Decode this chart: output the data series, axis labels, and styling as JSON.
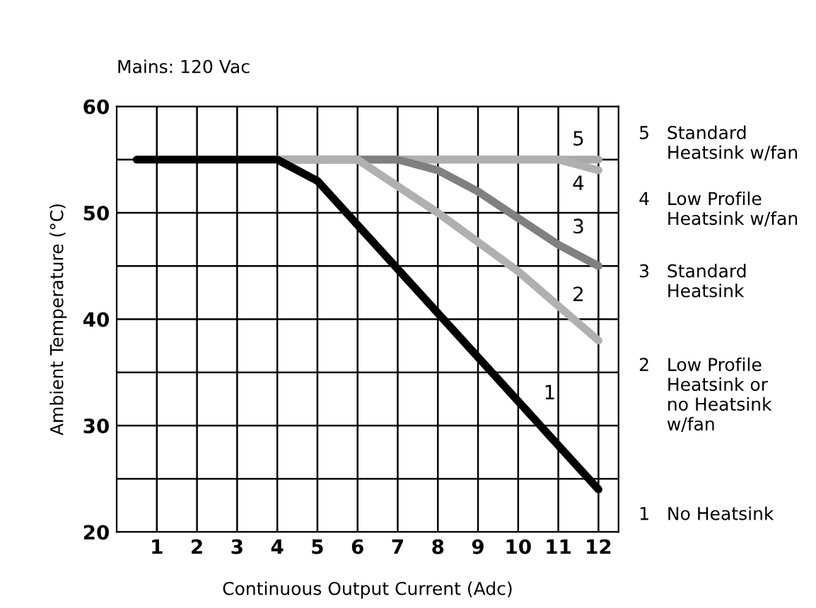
{
  "chart_data": {
    "type": "line",
    "subtitle": "Mains: 120 Vac",
    "xlabel": "Continuous Output Current (Adc)",
    "ylabel": "Ambient Temperature (°C)",
    "xlim": [
      0,
      12.5
    ],
    "xticks": [
      1,
      2,
      3,
      4,
      5,
      6,
      7,
      8,
      9,
      10,
      11,
      12
    ],
    "ylim": [
      20,
      60
    ],
    "yticks": [
      20,
      {
        "value": 25,
        "label": null
      },
      30,
      {
        "value": 35,
        "label": null
      },
      40,
      {
        "value": 45,
        "label": null
      },
      50,
      {
        "value": 55,
        "label": null
      },
      60
    ],
    "grid": true,
    "line_style": "solid",
    "marker": "none",
    "series": [
      {
        "color": "#aaaaaa",
        "x": [
          4,
          12
        ],
        "values": [
          55,
          55
        ]
      },
      {
        "color": "#b0b0b0",
        "x": [
          4,
          11,
          12
        ],
        "values": [
          55,
          55,
          54
        ]
      },
      {
        "color": "#808080",
        "x": [
          4,
          7,
          8,
          9,
          10,
          11,
          12
        ],
        "values": [
          55,
          55,
          54,
          52,
          49.5,
          47,
          45
        ]
      },
      {
        "color": "#b0b0b0",
        "x": [
          4,
          6,
          8,
          10,
          12
        ],
        "values": [
          55,
          55,
          50,
          44.5,
          38
        ]
      },
      {
        "color": "#000000",
        "x": [
          0.5,
          4,
          5,
          12
        ],
        "values": [
          55,
          55,
          53,
          24
        ]
      }
    ],
    "annotations": [
      "5",
      "4",
      "3",
      "2",
      "1",
      "5   Standard\n     Heatsink w/fan",
      "4   Low Profile\n     Heatsink w/fan",
      "3   Standard\n     Heatsink",
      "2   Low Profile\n     Heatsink or\n     no Heatsink\n     w/fan",
      "1   No Heatsink"
    ]
  }
}
